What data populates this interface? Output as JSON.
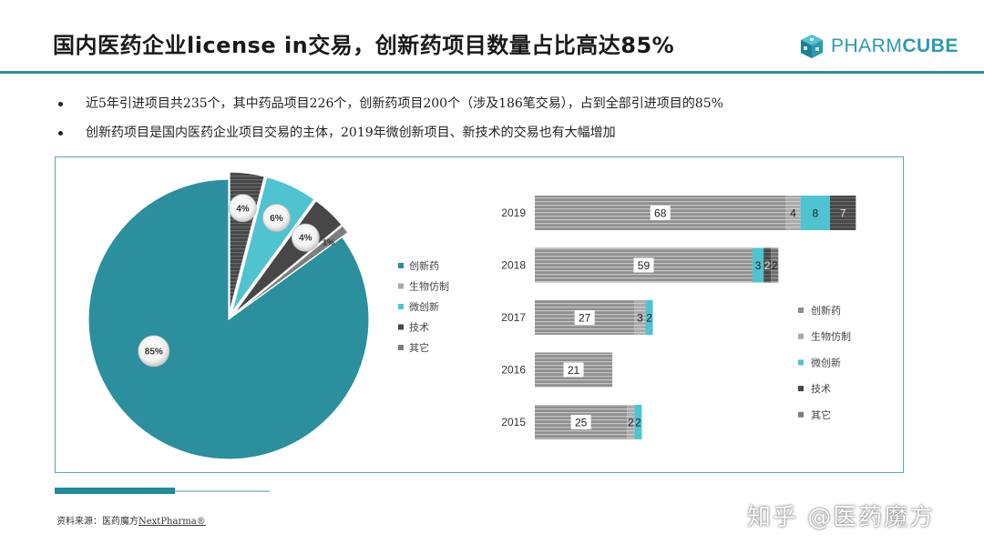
{
  "header": {
    "title": "国内医药企业license in交易，创新药项目数量占比高达85%",
    "logo": {
      "prefix": "PHARM",
      "suffix": "CUBE",
      "color": "#2a9ab0",
      "icon": "cube-icon"
    }
  },
  "bullets": [
    "近5年引进项目共235个，其中药品项目226个，创新药项目200个（涉及186笔交易），占到全部引进项目的85%",
    "创新药项目是国内医药企业项目交易的主体，2019年微创新项目、新技术的交易也有大幅增加"
  ],
  "footer": {
    "source_prefix": "资料来源：医药魔方",
    "source_brand": "NextPharma®",
    "watermark": "知乎 @医药魔方"
  },
  "colors": {
    "accent": "#1f8a9c",
    "innovative": "#2b8f9d",
    "biosimilar": "#a9a9a9",
    "micro": "#4fc3d0",
    "technology": "#474747",
    "other": "#7d7d7d",
    "bar_main": "#8f8f8f"
  },
  "chart_data": [
    {
      "type": "pie",
      "slices": [
        {
          "name": "创新药",
          "value": 85,
          "label": "85%"
        },
        {
          "name": "生物仿制",
          "value": 4,
          "label": "4%"
        },
        {
          "name": "微创新",
          "value": 6,
          "label": "6%"
        },
        {
          "name": "技术",
          "value": 4,
          "label": "4%"
        },
        {
          "name": "其它",
          "value": 1,
          "label": "1%"
        }
      ],
      "legend": [
        "创新药",
        "生物仿制",
        "微创新",
        "技术",
        "其它"
      ],
      "legend_placement": "right"
    },
    {
      "type": "bar",
      "orientation": "horizontal",
      "stacked": true,
      "categories": [
        "2019",
        "2018",
        "2017",
        "2016",
        "2015"
      ],
      "series": [
        {
          "name": "创新药",
          "values": [
            68,
            59,
            27,
            21,
            25
          ],
          "labels": [
            "68",
            "59",
            "27",
            "21",
            "25"
          ]
        },
        {
          "name": "生物仿制",
          "values": [
            4,
            0,
            3,
            0,
            2
          ],
          "labels": [
            "4",
            "",
            "3",
            "",
            "2"
          ]
        },
        {
          "name": "微创新",
          "values": [
            8,
            3,
            2,
            0,
            2
          ],
          "labels": [
            "8",
            "3",
            "2",
            "",
            "2"
          ]
        },
        {
          "name": "技术",
          "values": [
            7,
            2,
            0,
            0,
            0
          ],
          "labels": [
            "7",
            "2",
            "",
            "",
            ""
          ]
        },
        {
          "name": "其它",
          "values": [
            0,
            2,
            0,
            0,
            0
          ],
          "labels": [
            "",
            "2",
            "",
            "",
            ""
          ]
        }
      ],
      "legend": [
        "创新药",
        "生物仿制",
        "微创新",
        "技术",
        "其它"
      ],
      "legend_placement": "right",
      "grid": false
    }
  ]
}
